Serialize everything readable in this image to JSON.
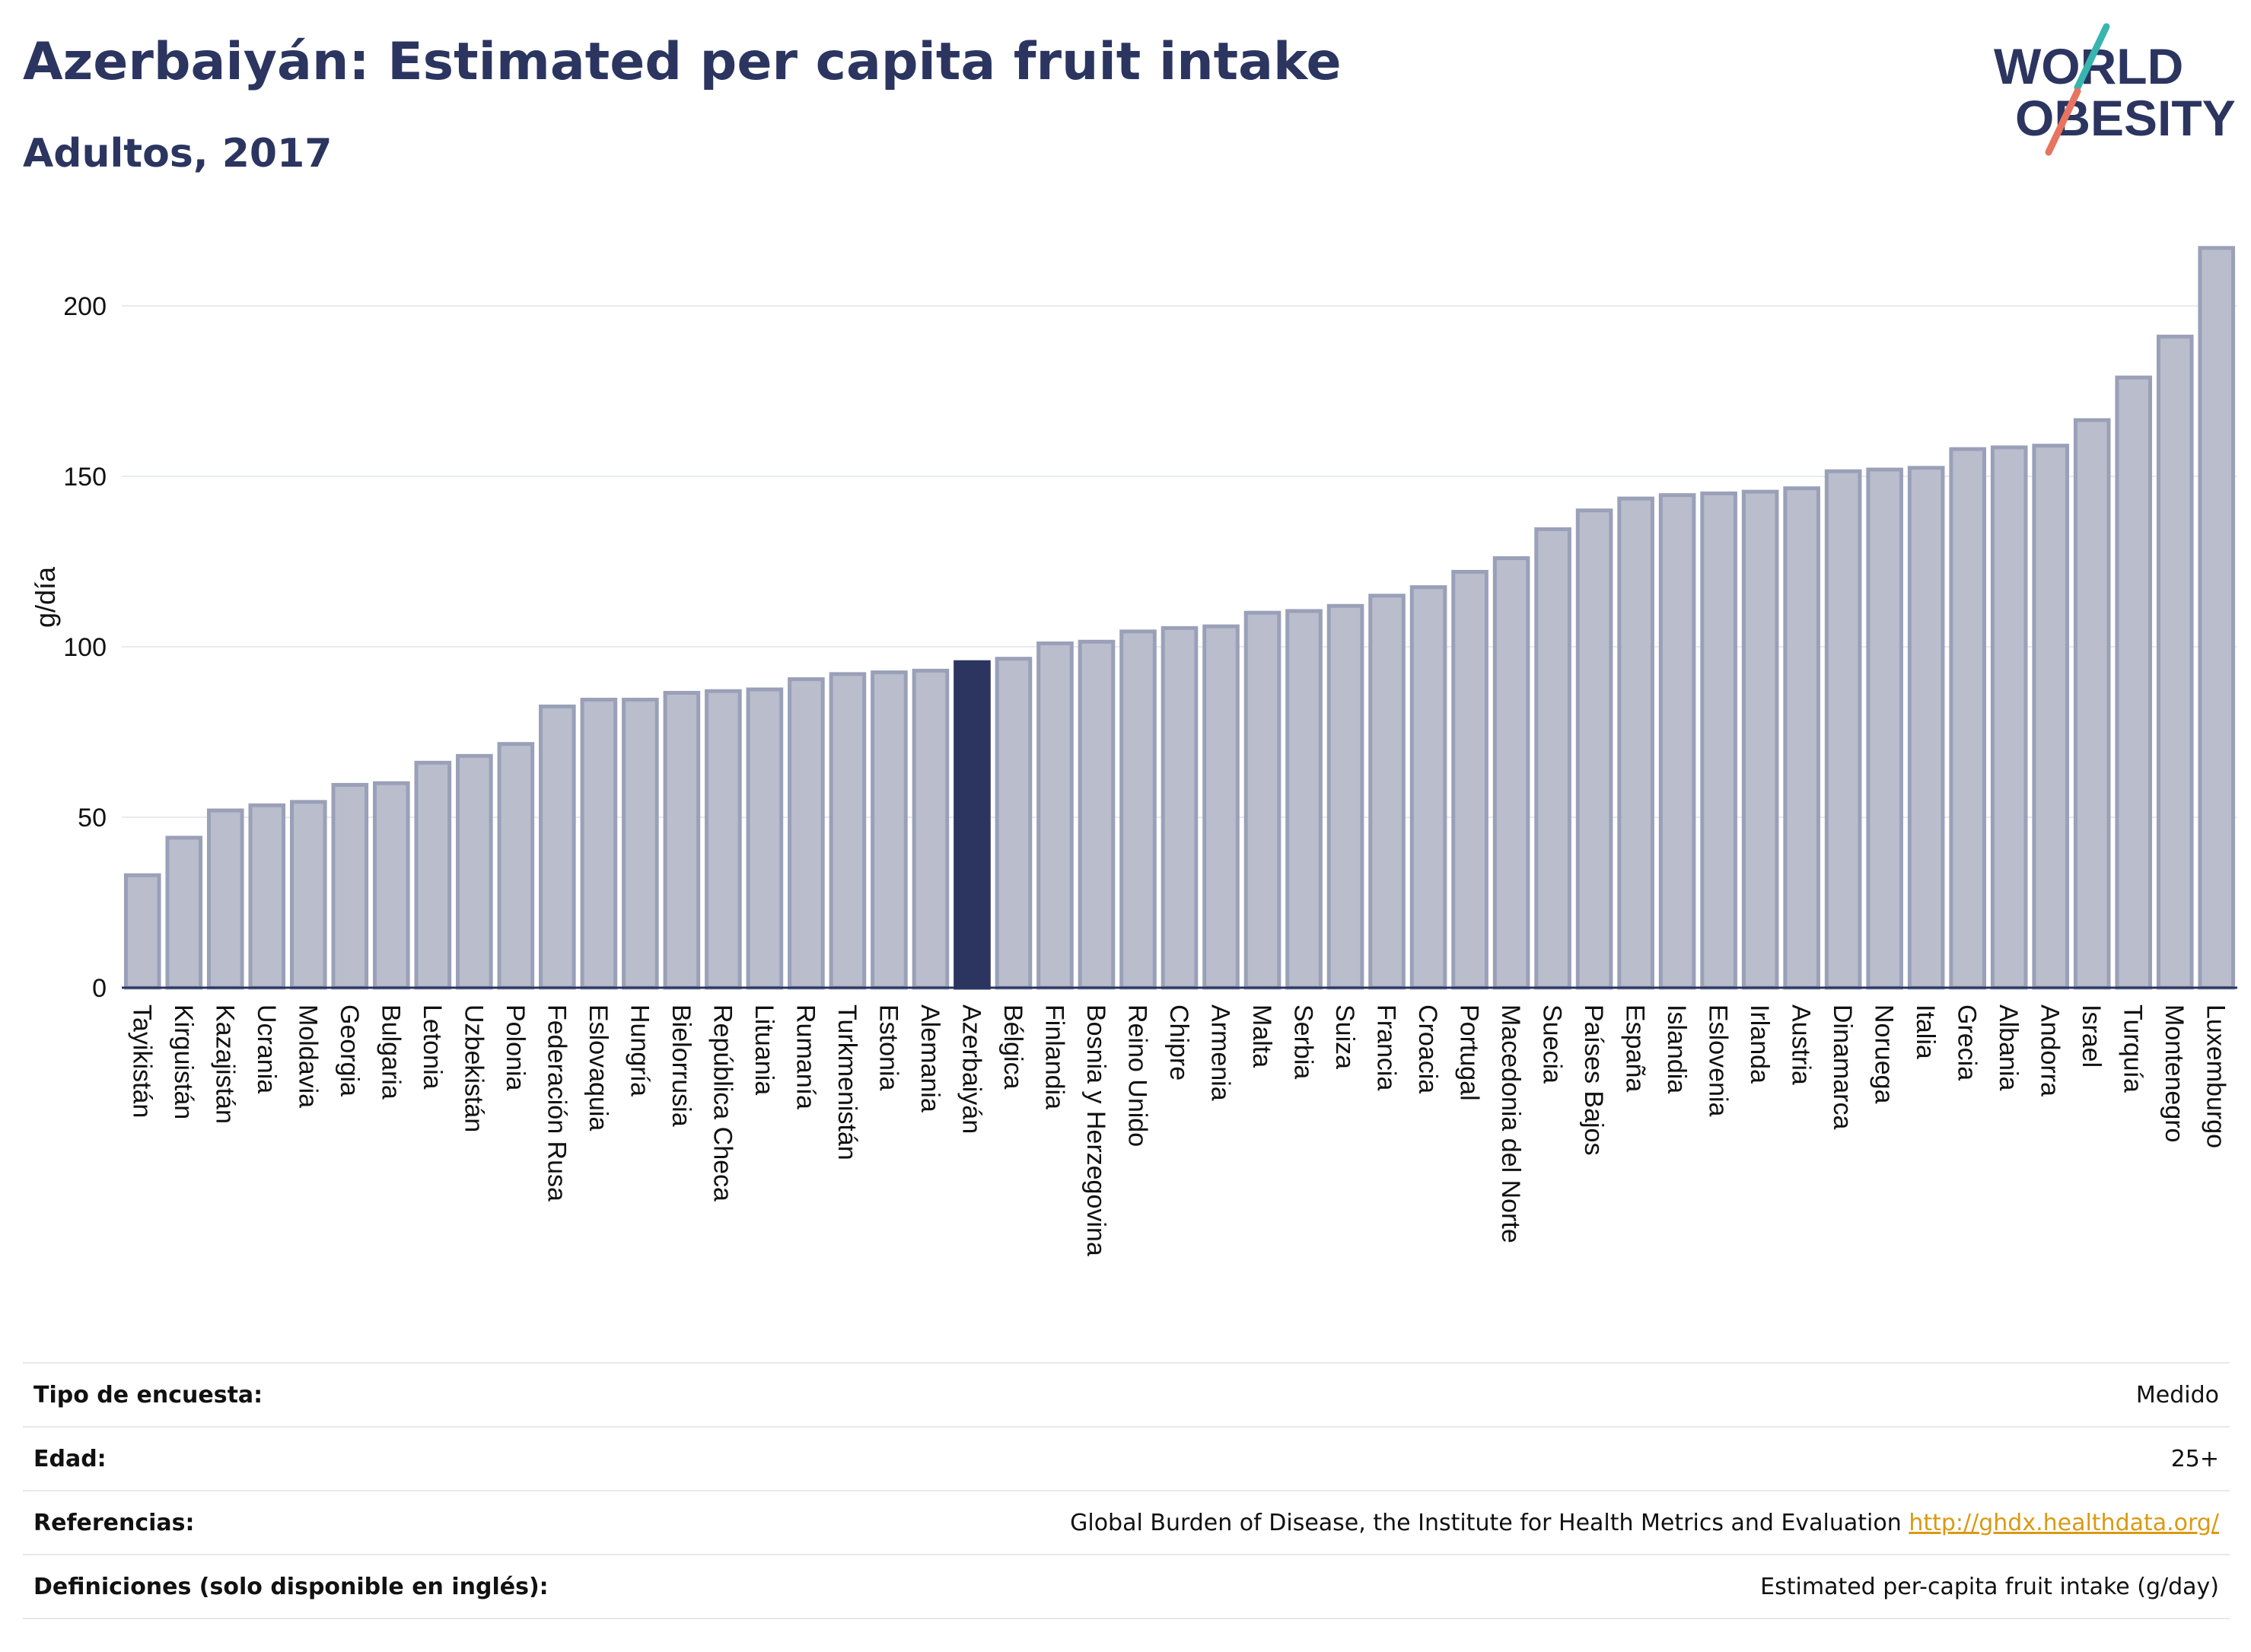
{
  "header": {
    "title": "Azerbaiyán: Estimated per capita fruit intake",
    "subtitle": "Adultos, 2017"
  },
  "logo": {
    "line1": "WORLD",
    "line2": "OBESITY",
    "text_color": "#2b3560",
    "stroke_teal": "#39b5b0",
    "stroke_coral": "#e8735f"
  },
  "chart_data": {
    "type": "bar",
    "ylabel": "g/día",
    "xlabel": "",
    "ylim": [
      0,
      225
    ],
    "yticks": [
      0,
      50,
      100,
      150,
      200
    ],
    "grid": true,
    "highlight": "Azerbaiyán",
    "colors": {
      "bar": "#b9bdcc",
      "bar_edge": "#9aa0b8",
      "highlight": "#2b3560",
      "grid": "#e8eaef",
      "axis": "#2b3560"
    },
    "categories": [
      "Tayikistán",
      "Kirguistán",
      "Kazajistán",
      "Ucrania",
      "Moldavia",
      "Georgia",
      "Bulgaria",
      "Letonia",
      "Uzbekistán",
      "Polonia",
      "Federación Rusa",
      "Eslovaquia",
      "Hungría",
      "Bielorrusia",
      "República Checa",
      "Lituania",
      "Rumanía",
      "Turkmenistán",
      "Estonia",
      "Alemania",
      "Azerbaiyán",
      "Bélgica",
      "Finlandia",
      "Bosnia y Herzegovina",
      "Reino Unido",
      "Chipre",
      "Armenia",
      "Malta",
      "Serbia",
      "Suiza",
      "Francia",
      "Croacia",
      "Portugal",
      "Macedonia del Norte",
      "Suecia",
      "Países Bajos",
      "España",
      "Islandia",
      "Eslovenia",
      "Irlanda",
      "Austria",
      "Dinamarca",
      "Noruega",
      "Italia",
      "Grecia",
      "Albania",
      "Andorra",
      "Israel",
      "Turquía",
      "Montenegro",
      "Luxemburgo"
    ],
    "values": [
      33,
      44,
      52,
      53.5,
      54.5,
      59.5,
      60,
      66,
      68,
      71.5,
      82.5,
      84.5,
      84.5,
      86.5,
      87,
      87.5,
      90.5,
      92,
      92.5,
      93,
      95.5,
      96.5,
      101,
      101.5,
      104.5,
      105.5,
      106,
      110,
      110.5,
      112,
      115,
      117.5,
      122,
      126,
      134.5,
      140,
      143.5,
      144.5,
      145,
      145.5,
      146.5,
      151.5,
      152,
      152.5,
      158,
      158.5,
      159,
      166.5,
      179,
      191,
      217
    ]
  },
  "info": [
    {
      "key": "Tipo de encuesta:",
      "value": "Medido"
    },
    {
      "key": "Edad:",
      "value": "25+"
    },
    {
      "key": "Referencias:",
      "value": "Global Burden of Disease, the Institute for Health Metrics and Evaluation",
      "link": "http://ghdx.healthdata.org/"
    },
    {
      "key": "Definiciones (solo disponible en inglés):",
      "value": "Estimated per-capita fruit intake (g/day)"
    }
  ]
}
